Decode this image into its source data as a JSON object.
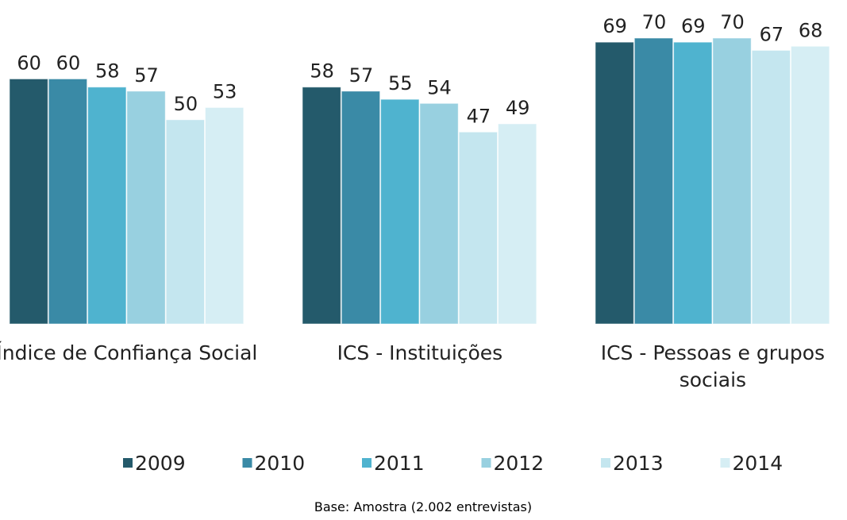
{
  "chart_data": {
    "type": "bar",
    "categories": [
      "Índice de Confiança Social",
      "ICS - Instituições",
      "ICS - Pessoas e grupos sociais"
    ],
    "series": [
      {
        "name": "2009",
        "color": "#245a6b",
        "values": [
          60,
          58,
          69
        ]
      },
      {
        "name": "2010",
        "color": "#3a8aa6",
        "values": [
          60,
          57,
          70
        ]
      },
      {
        "name": "2011",
        "color": "#4fb3cf",
        "values": [
          58,
          55,
          69
        ]
      },
      {
        "name": "2012",
        "color": "#98d0e0",
        "values": [
          57,
          54,
          70
        ]
      },
      {
        "name": "2013",
        "color": "#c4e6ef",
        "values": [
          50,
          47,
          67
        ]
      },
      {
        "name": "2014",
        "color": "#d6eef4",
        "values": [
          53,
          49,
          68
        ]
      }
    ],
    "ylim": [
      0,
      70
    ],
    "note": "Base: Amostra  (2.002 entrevistas)"
  }
}
